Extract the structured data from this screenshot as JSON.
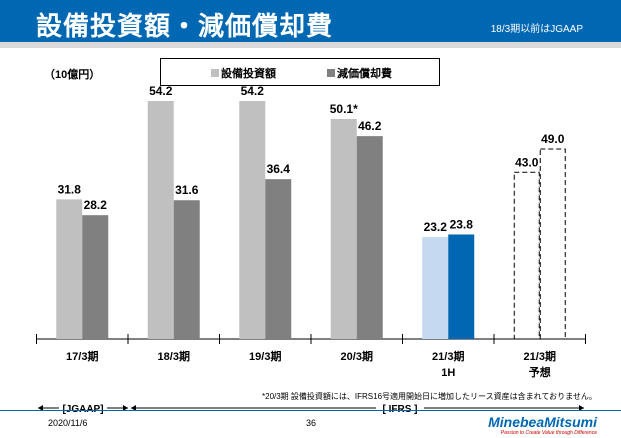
{
  "header": {
    "title": "設備投資額・減価償却費",
    "note": "18/3期以前はJGAAP"
  },
  "colors": {
    "header": "#0067b2",
    "capex": "#c0c0c0",
    "depr": "#808080",
    "capex_1h": "#c5d9f1",
    "depr_1h": "#0067b2"
  },
  "chart_data": {
    "type": "bar",
    "unit_label": "（10億円）",
    "categories": [
      "17/3期",
      "18/3期",
      "19/3期",
      "20/3期",
      "21/3期\n1H",
      "21/3期\n予想"
    ],
    "series": [
      {
        "name": "設備投資額",
        "values": [
          31.8,
          54.2,
          54.2,
          50.1,
          23.2,
          43.0
        ],
        "labels": [
          "31.8",
          "54.2",
          "54.2",
          "50.1*",
          "23.2",
          "43.0"
        ]
      },
      {
        "name": "減価償却費",
        "values": [
          28.2,
          31.6,
          36.4,
          46.2,
          23.8,
          49.0
        ],
        "labels": [
          "28.2",
          "31.6",
          "36.4",
          "46.2",
          "23.8",
          "49.0"
        ]
      }
    ],
    "forecast_style": "dashed-outline",
    "legend": "top"
  },
  "footnote": "*20/3期 設備投資額には、IFRS16号適用開始日に増加したリース資産は含まれておりません。",
  "periods": {
    "jgaap": "[JGAAP]",
    "ifrs": "[ IFRS ]"
  },
  "footer": {
    "date": "2020/11/6",
    "page": "36",
    "logo": "MinebeaMitsumi",
    "tagline": "Passion to Create Value through Difference"
  }
}
